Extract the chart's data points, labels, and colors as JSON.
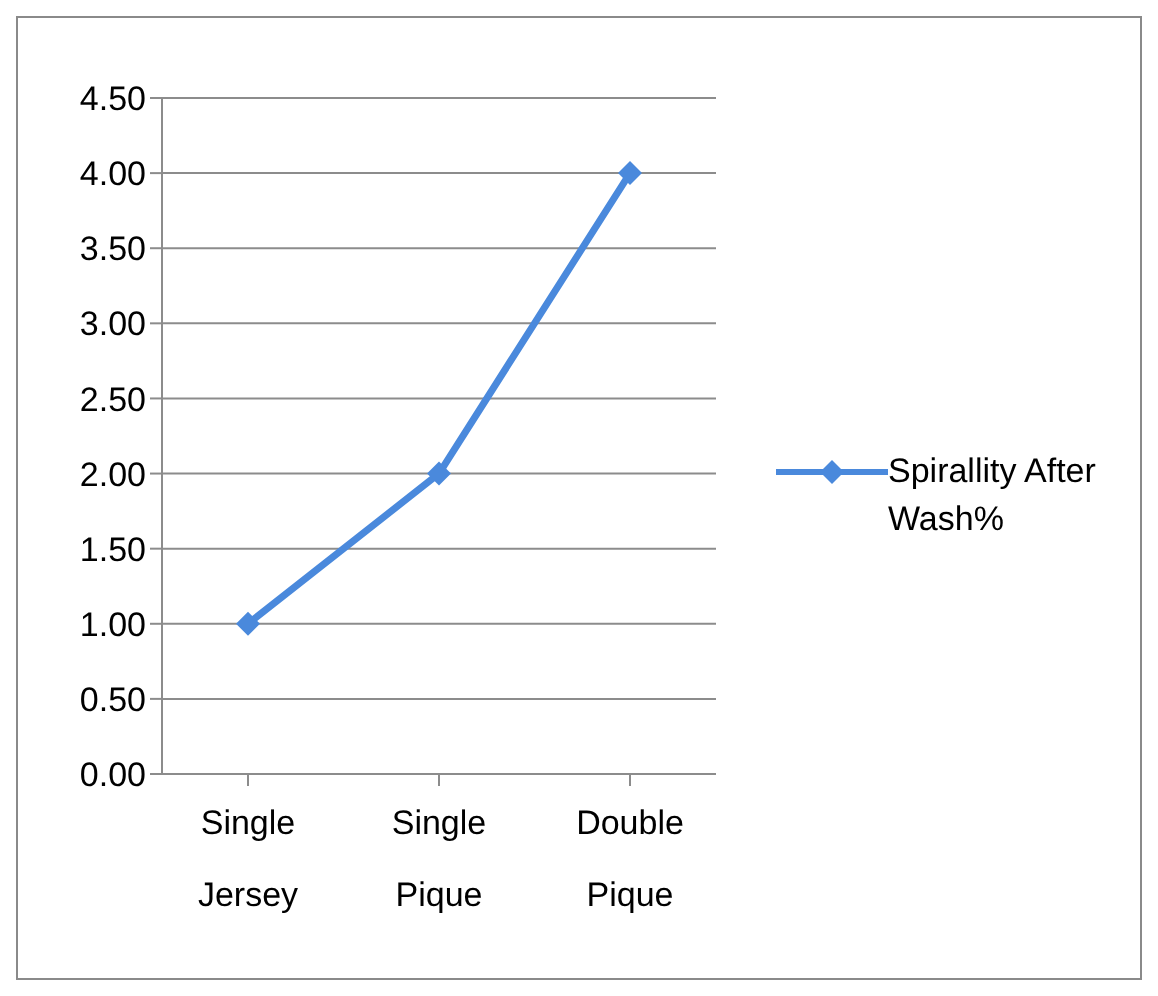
{
  "chart_data": {
    "type": "line",
    "categories": [
      "Single Jersey",
      "Single Pique",
      "Double Pique"
    ],
    "series": [
      {
        "name": "Spirallity After Wash%",
        "color": "#4a89dc",
        "values": [
          1,
          2,
          4
        ]
      }
    ],
    "ylim": [
      0,
      4.5
    ],
    "yticks": [
      {
        "value": 0,
        "label": "0.00"
      },
      {
        "value": 0.5,
        "label": "0.50"
      },
      {
        "value": 1,
        "label": "1.00"
      },
      {
        "value": 1.5,
        "label": "1.50"
      },
      {
        "value": 2,
        "label": "2.00"
      },
      {
        "value": 2.5,
        "label": "2.50"
      },
      {
        "value": 3,
        "label": "3.00"
      },
      {
        "value": 3.5,
        "label": "3.50"
      },
      {
        "value": 4,
        "label": "4.00"
      },
      {
        "value": 4.5,
        "label": "4.50"
      }
    ],
    "grid": "y",
    "legend": "right",
    "marker": "diamond",
    "line_style": "solid"
  }
}
